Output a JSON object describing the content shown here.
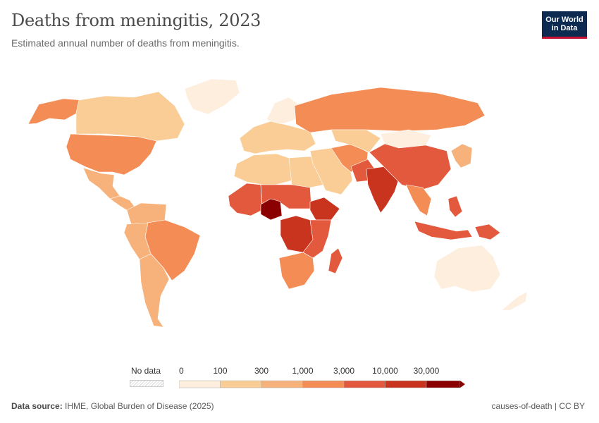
{
  "header": {
    "title": "Deaths from meningitis, 2023",
    "subtitle": "Estimated annual number of deaths from meningitis."
  },
  "logo": {
    "text": "Our World\nin Data",
    "bg": "#0d2a50",
    "accent": "#c8102e"
  },
  "legend": {
    "no_data_label": "No data",
    "ticks": [
      "0",
      "100",
      "300",
      "1,000",
      "3,000",
      "10,000",
      "30,000"
    ],
    "colors": [
      "#fdeede",
      "#f9cd95",
      "#f6b27a",
      "#f48c55",
      "#e2593d",
      "#c9341f",
      "#8b0000"
    ]
  },
  "footer": {
    "source_label": "Data source:",
    "source_text": "IHME, Global Burden of Disease (2025)",
    "right_text": "causes-of-death | CC BY"
  },
  "chart_data": {
    "type": "choropleth",
    "title": "Deaths from meningitis, 2023",
    "subtitle": "Estimated annual number of deaths from meningitis.",
    "legend_placement": "bottom",
    "scale": {
      "breaks": [
        0,
        100,
        300,
        1000,
        3000,
        10000,
        30000
      ],
      "colors": [
        "#fdeede",
        "#f9cd95",
        "#f6b27a",
        "#f48c55",
        "#e2593d",
        "#c9341f",
        "#8b0000"
      ]
    },
    "regions": [
      {
        "id": "alaska",
        "bin": 3
      },
      {
        "id": "canada",
        "bin": 1
      },
      {
        "id": "greenland",
        "bin": 0
      },
      {
        "id": "usa",
        "bin": 3
      },
      {
        "id": "mexico",
        "bin": 2
      },
      {
        "id": "central-america",
        "bin": 2
      },
      {
        "id": "colombia-venezuela",
        "bin": 2
      },
      {
        "id": "brazil",
        "bin": 3
      },
      {
        "id": "peru-bolivia",
        "bin": 2
      },
      {
        "id": "argentina-chile",
        "bin": 2
      },
      {
        "id": "western-europe",
        "bin": 1
      },
      {
        "id": "scandinavia",
        "bin": 0
      },
      {
        "id": "russia",
        "bin": 3
      },
      {
        "id": "north-africa",
        "bin": 1
      },
      {
        "id": "libya-egypt",
        "bin": 1
      },
      {
        "id": "west-africa",
        "bin": 4
      },
      {
        "id": "nigeria",
        "bin": 6
      },
      {
        "id": "sahel",
        "bin": 4
      },
      {
        "id": "ethiopia",
        "bin": 5
      },
      {
        "id": "congo-drc",
        "bin": 5
      },
      {
        "id": "east-africa",
        "bin": 4
      },
      {
        "id": "southern-africa",
        "bin": 3
      },
      {
        "id": "madagascar",
        "bin": 4
      },
      {
        "id": "middle-east",
        "bin": 1
      },
      {
        "id": "iran-afghanistan",
        "bin": 3
      },
      {
        "id": "pakistan",
        "bin": 4
      },
      {
        "id": "india",
        "bin": 5
      },
      {
        "id": "central-asia",
        "bin": 1
      },
      {
        "id": "mongolia",
        "bin": 0
      },
      {
        "id": "china",
        "bin": 4
      },
      {
        "id": "southeast-asia",
        "bin": 3
      },
      {
        "id": "indonesia",
        "bin": 4
      },
      {
        "id": "philippines",
        "bin": 4
      },
      {
        "id": "japan-korea",
        "bin": 2
      },
      {
        "id": "papua",
        "bin": 4
      },
      {
        "id": "australia",
        "bin": 0
      },
      {
        "id": "new-zealand",
        "bin": 0
      }
    ]
  }
}
